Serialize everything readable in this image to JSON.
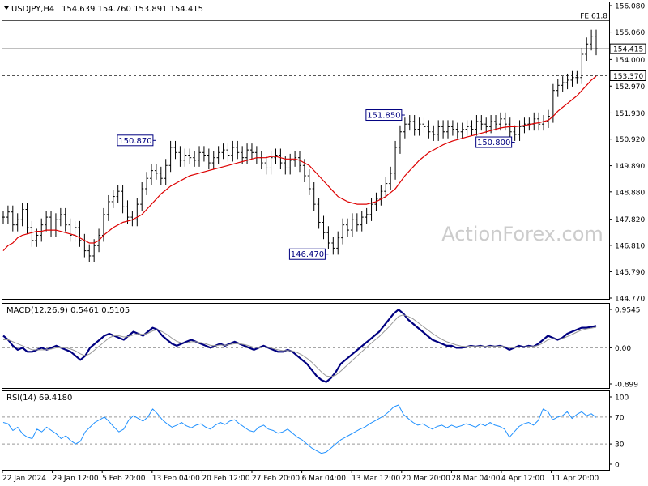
{
  "header": {
    "symbol": "USDJPY,H4",
    "ohlc": "154.639 154.760 153.891 154.415"
  },
  "watermark": "ActionForex.com",
  "time_labels": [
    "22 Jan 2024",
    "29 Jan 12:00",
    "5 Feb 20:00",
    "13 Feb 04:00",
    "20 Feb 12:00",
    "27 Feb 20:00",
    "6 Mar 04:00",
    "13 Mar 12:00",
    "20 Mar 20:00",
    "28 Mar 04:00",
    "4 Apr 12:00",
    "11 Apr 20:00"
  ],
  "colors": {
    "price": "#000000",
    "ema": "#dd0000",
    "macd": "#000080",
    "signal": "#999999",
    "rsi": "#1e90ff",
    "grid": "#999999"
  },
  "chart_data": [
    {
      "type": "line",
      "panel": "price",
      "ylim": [
        144.77,
        156.08
      ],
      "yticks": [
        "156.080",
        "155.060",
        "154.000",
        "152.970",
        "151.930",
        "150.920",
        "149.890",
        "148.880",
        "147.820",
        "146.810",
        "145.790",
        "144.770"
      ],
      "hlines": [
        {
          "value": 155.5,
          "label": "FE 61.8",
          "style": "solid"
        },
        {
          "value": 154.415,
          "label": "154.415",
          "style": "solid",
          "badge": true
        },
        {
          "value": 153.37,
          "label": "153.370",
          "style": "dashed",
          "badge": true
        }
      ],
      "annotations": [
        {
          "label": "150.870",
          "value": 150.87,
          "bar": 32
        },
        {
          "label": "146.470",
          "value": 146.47,
          "bar": 68
        },
        {
          "label": "151.850",
          "value": 151.85,
          "bar": 84
        },
        {
          "label": "150.800",
          "value": 150.8,
          "bar": 107
        }
      ],
      "series": [
        {
          "name": "price",
          "values": [
            147.9,
            148.1,
            147.6,
            147.8,
            148.2,
            147.5,
            147.0,
            147.2,
            147.6,
            147.9,
            147.4,
            147.8,
            148.0,
            147.6,
            147.2,
            147.5,
            147.0,
            146.6,
            146.4,
            146.8,
            147.2,
            148.0,
            148.5,
            148.7,
            148.9,
            148.3,
            147.9,
            147.8,
            148.4,
            149.0,
            149.4,
            149.7,
            149.6,
            149.4,
            149.9,
            150.6,
            150.4,
            150.1,
            150.3,
            150.2,
            150.1,
            150.4,
            150.3,
            150.0,
            150.2,
            150.4,
            150.5,
            150.3,
            150.6,
            150.4,
            150.2,
            150.5,
            150.4,
            150.2,
            150.0,
            149.8,
            150.2,
            150.3,
            150.0,
            149.8,
            150.1,
            150.2,
            149.9,
            149.5,
            149.0,
            148.4,
            147.7,
            147.3,
            146.9,
            146.7,
            147.1,
            147.6,
            147.4,
            147.8,
            147.6,
            147.9,
            148.0,
            148.4,
            148.6,
            148.9,
            149.2,
            149.6,
            150.6,
            151.2,
            151.5,
            151.6,
            151.3,
            151.5,
            151.4,
            151.2,
            151.1,
            151.4,
            151.2,
            151.4,
            151.3,
            151.2,
            151.3,
            151.4,
            151.3,
            151.6,
            151.5,
            151.4,
            151.6,
            151.5,
            151.7,
            151.5,
            151.2,
            151.1,
            151.4,
            151.5,
            151.5,
            151.7,
            151.5,
            151.6,
            151.8,
            152.8,
            153.0,
            153.1,
            153.2,
            153.3,
            153.3,
            154.2,
            154.6,
            154.9,
            154.415
          ]
        },
        {
          "name": "EMA",
          "values": [
            146.6,
            146.8,
            146.9,
            147.1,
            147.2,
            147.25,
            147.3,
            147.35,
            147.35,
            147.4,
            147.4,
            147.4,
            147.35,
            147.3,
            147.25,
            147.2,
            147.1,
            147.0,
            146.9,
            146.9,
            147.0,
            147.2,
            147.35,
            147.5,
            147.6,
            147.7,
            147.75,
            147.8,
            147.9,
            148.0,
            148.2,
            148.4,
            148.6,
            148.8,
            148.95,
            149.1,
            149.2,
            149.3,
            149.4,
            149.5,
            149.55,
            149.6,
            149.65,
            149.7,
            149.75,
            149.8,
            149.85,
            149.9,
            149.95,
            150.0,
            150.05,
            150.1,
            150.15,
            150.2,
            150.2,
            150.2,
            150.25,
            150.25,
            150.2,
            150.15,
            150.15,
            150.15,
            150.1,
            150.0,
            149.9,
            149.7,
            149.5,
            149.3,
            149.1,
            148.9,
            148.7,
            148.6,
            148.5,
            148.45,
            148.4,
            148.4,
            148.4,
            148.45,
            148.5,
            148.6,
            148.7,
            148.85,
            149.0,
            149.25,
            149.5,
            149.7,
            149.9,
            150.1,
            150.25,
            150.4,
            150.5,
            150.6,
            150.7,
            150.78,
            150.85,
            150.9,
            150.95,
            151.0,
            151.05,
            151.1,
            151.15,
            151.2,
            151.25,
            151.3,
            151.35,
            151.38,
            151.4,
            151.4,
            151.42,
            151.45,
            151.48,
            151.52,
            151.55,
            151.6,
            151.65,
            151.8,
            152.0,
            152.15,
            152.3,
            152.45,
            152.6,
            152.8,
            153.0,
            153.2,
            153.35
          ]
        }
      ]
    },
    {
      "type": "line",
      "panel": "macd",
      "title": "MACD(12,26,9) 0.5461 0.5105",
      "ylim": [
        -0.899,
        0.9545
      ],
      "yticks": [
        "0.9545",
        "0.00",
        "-0.899"
      ],
      "series": [
        {
          "name": "MACD",
          "values": [
            0.3,
            0.2,
            0.05,
            -0.05,
            0.0,
            -0.1,
            -0.1,
            -0.05,
            0.0,
            -0.05,
            0.0,
            0.05,
            0.0,
            -0.05,
            -0.1,
            -0.2,
            -0.3,
            -0.2,
            0.0,
            0.1,
            0.2,
            0.3,
            0.35,
            0.3,
            0.25,
            0.2,
            0.3,
            0.4,
            0.35,
            0.3,
            0.4,
            0.5,
            0.45,
            0.3,
            0.2,
            0.1,
            0.05,
            0.1,
            0.15,
            0.2,
            0.15,
            0.1,
            0.05,
            0.0,
            0.05,
            0.1,
            0.05,
            0.1,
            0.15,
            0.1,
            0.05,
            0.0,
            -0.05,
            0.0,
            0.05,
            0.0,
            -0.05,
            -0.1,
            -0.1,
            -0.05,
            -0.1,
            -0.2,
            -0.3,
            -0.4,
            -0.55,
            -0.7,
            -0.8,
            -0.85,
            -0.75,
            -0.6,
            -0.4,
            -0.3,
            -0.2,
            -0.1,
            0.0,
            0.1,
            0.2,
            0.3,
            0.4,
            0.55,
            0.7,
            0.85,
            0.95,
            0.85,
            0.7,
            0.6,
            0.5,
            0.4,
            0.3,
            0.2,
            0.15,
            0.1,
            0.05,
            0.05,
            0.0,
            0.0,
            0.02,
            0.05,
            0.03,
            0.05,
            0.02,
            0.05,
            0.03,
            0.05,
            0.02,
            -0.05,
            0.0,
            0.05,
            0.02,
            0.05,
            0.03,
            0.1,
            0.2,
            0.3,
            0.25,
            0.2,
            0.25,
            0.35,
            0.4,
            0.45,
            0.5,
            0.5,
            0.52,
            0.5461
          ]
        },
        {
          "name": "Signal",
          "values": [
            0.2,
            0.2,
            0.15,
            0.1,
            0.05,
            0.0,
            -0.05,
            -0.05,
            -0.05,
            -0.05,
            -0.03,
            0.0,
            0.0,
            0.0,
            -0.03,
            -0.08,
            -0.15,
            -0.2,
            -0.15,
            -0.05,
            0.05,
            0.15,
            0.25,
            0.3,
            0.3,
            0.27,
            0.28,
            0.32,
            0.35,
            0.33,
            0.36,
            0.42,
            0.45,
            0.4,
            0.33,
            0.24,
            0.16,
            0.12,
            0.12,
            0.15,
            0.15,
            0.13,
            0.1,
            0.06,
            0.05,
            0.07,
            0.06,
            0.08,
            0.1,
            0.1,
            0.08,
            0.05,
            0.01,
            0.0,
            0.02,
            0.01,
            -0.02,
            -0.05,
            -0.07,
            -0.07,
            -0.08,
            -0.12,
            -0.18,
            -0.26,
            -0.36,
            -0.48,
            -0.6,
            -0.7,
            -0.72,
            -0.68,
            -0.58,
            -0.47,
            -0.36,
            -0.25,
            -0.14,
            -0.03,
            0.08,
            0.18,
            0.28,
            0.4,
            0.52,
            0.65,
            0.78,
            0.82,
            0.78,
            0.72,
            0.63,
            0.54,
            0.45,
            0.36,
            0.28,
            0.21,
            0.15,
            0.11,
            0.07,
            0.04,
            0.03,
            0.04,
            0.03,
            0.04,
            0.03,
            0.04,
            0.03,
            0.04,
            0.03,
            0.0,
            0.0,
            0.02,
            0.02,
            0.03,
            0.03,
            0.06,
            0.12,
            0.2,
            0.23,
            0.22,
            0.23,
            0.28,
            0.33,
            0.39,
            0.44,
            0.47,
            0.49,
            0.5105
          ]
        }
      ]
    },
    {
      "type": "line",
      "panel": "rsi",
      "title": "RSI(14) 69.4180",
      "ylim": [
        0,
        100
      ],
      "yticks": [
        "100",
        "70",
        "30",
        "0"
      ],
      "levels": [
        70,
        30
      ],
      "series": [
        {
          "name": "RSI",
          "values": [
            62,
            60,
            50,
            55,
            45,
            40,
            38,
            52,
            48,
            55,
            50,
            45,
            38,
            42,
            35,
            30,
            34,
            48,
            55,
            62,
            66,
            70,
            63,
            55,
            48,
            52,
            65,
            72,
            68,
            64,
            70,
            82,
            75,
            66,
            60,
            55,
            58,
            62,
            57,
            54,
            58,
            60,
            55,
            52,
            58,
            62,
            59,
            64,
            66,
            60,
            55,
            50,
            48,
            55,
            58,
            52,
            50,
            46,
            48,
            52,
            46,
            40,
            36,
            30,
            24,
            20,
            16,
            18,
            24,
            30,
            36,
            40,
            44,
            48,
            52,
            55,
            60,
            64,
            68,
            72,
            78,
            85,
            88,
            74,
            68,
            62,
            58,
            60,
            56,
            52,
            56,
            58,
            54,
            58,
            55,
            57,
            60,
            58,
            55,
            60,
            57,
            62,
            58,
            56,
            52,
            40,
            48,
            56,
            60,
            62,
            58,
            65,
            82,
            78,
            66,
            70,
            72,
            78,
            68,
            74,
            78,
            72,
            75,
            69.418
          ]
        }
      ]
    }
  ]
}
